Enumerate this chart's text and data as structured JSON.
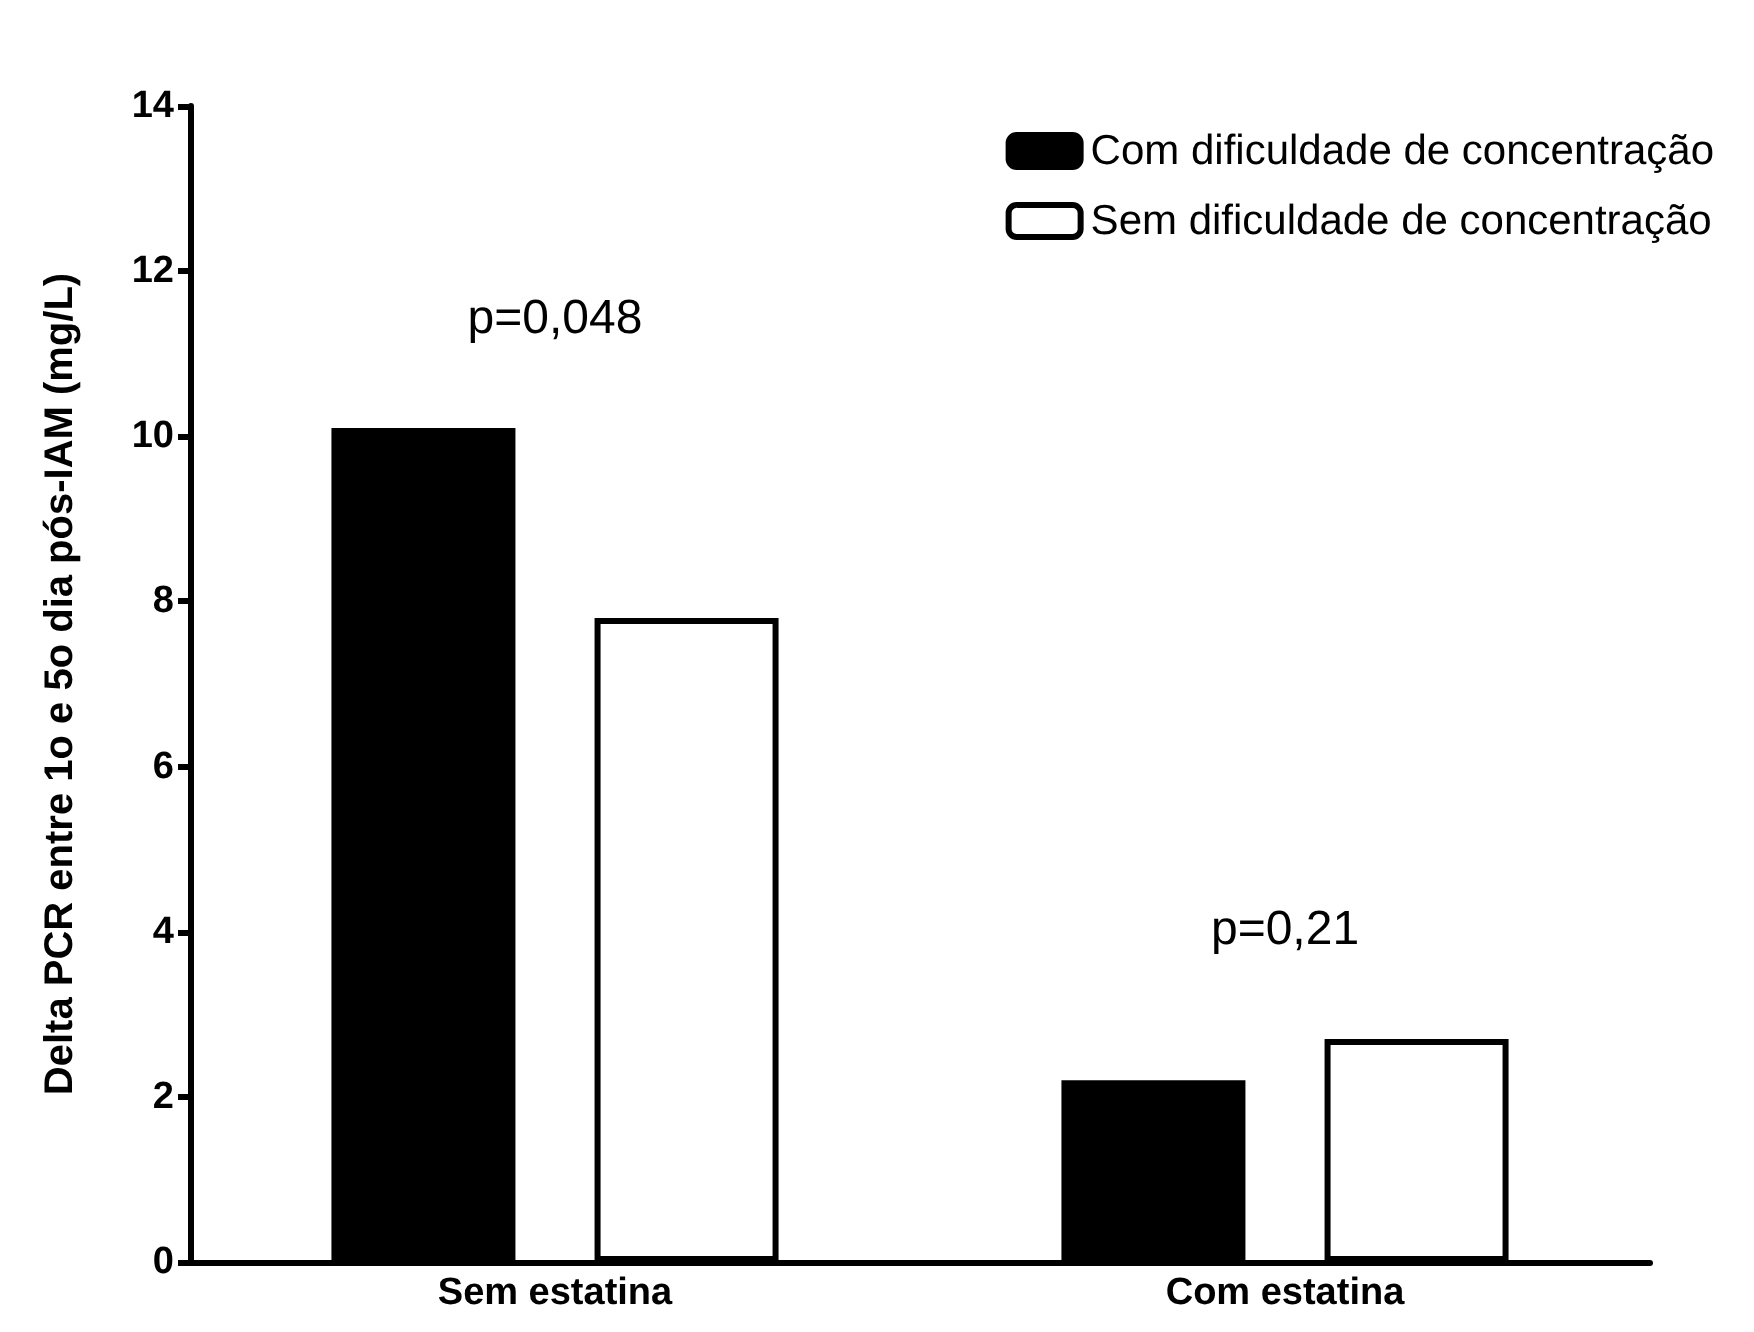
{
  "chart_data": {
    "type": "bar",
    "ylabel": "Delta PCR entre 1o e 5o dia pós-IAM (mg/L)",
    "categories": [
      "Sem estatina",
      "Com estatina"
    ],
    "series": [
      {
        "name": "Com dificuldade de concentração",
        "color": "#000000",
        "values": [
          10.1,
          2.2
        ]
      },
      {
        "name": "Sem dificuldade de concentração",
        "color": "#ffffff",
        "values": [
          7.8,
          2.7
        ]
      }
    ],
    "ylim": [
      0,
      14
    ],
    "yticks": [
      0,
      2,
      4,
      6,
      8,
      10,
      12,
      14
    ],
    "grid": false,
    "legend": "top right",
    "annotations": [
      "p=0,048",
      "p=0,21"
    ]
  }
}
